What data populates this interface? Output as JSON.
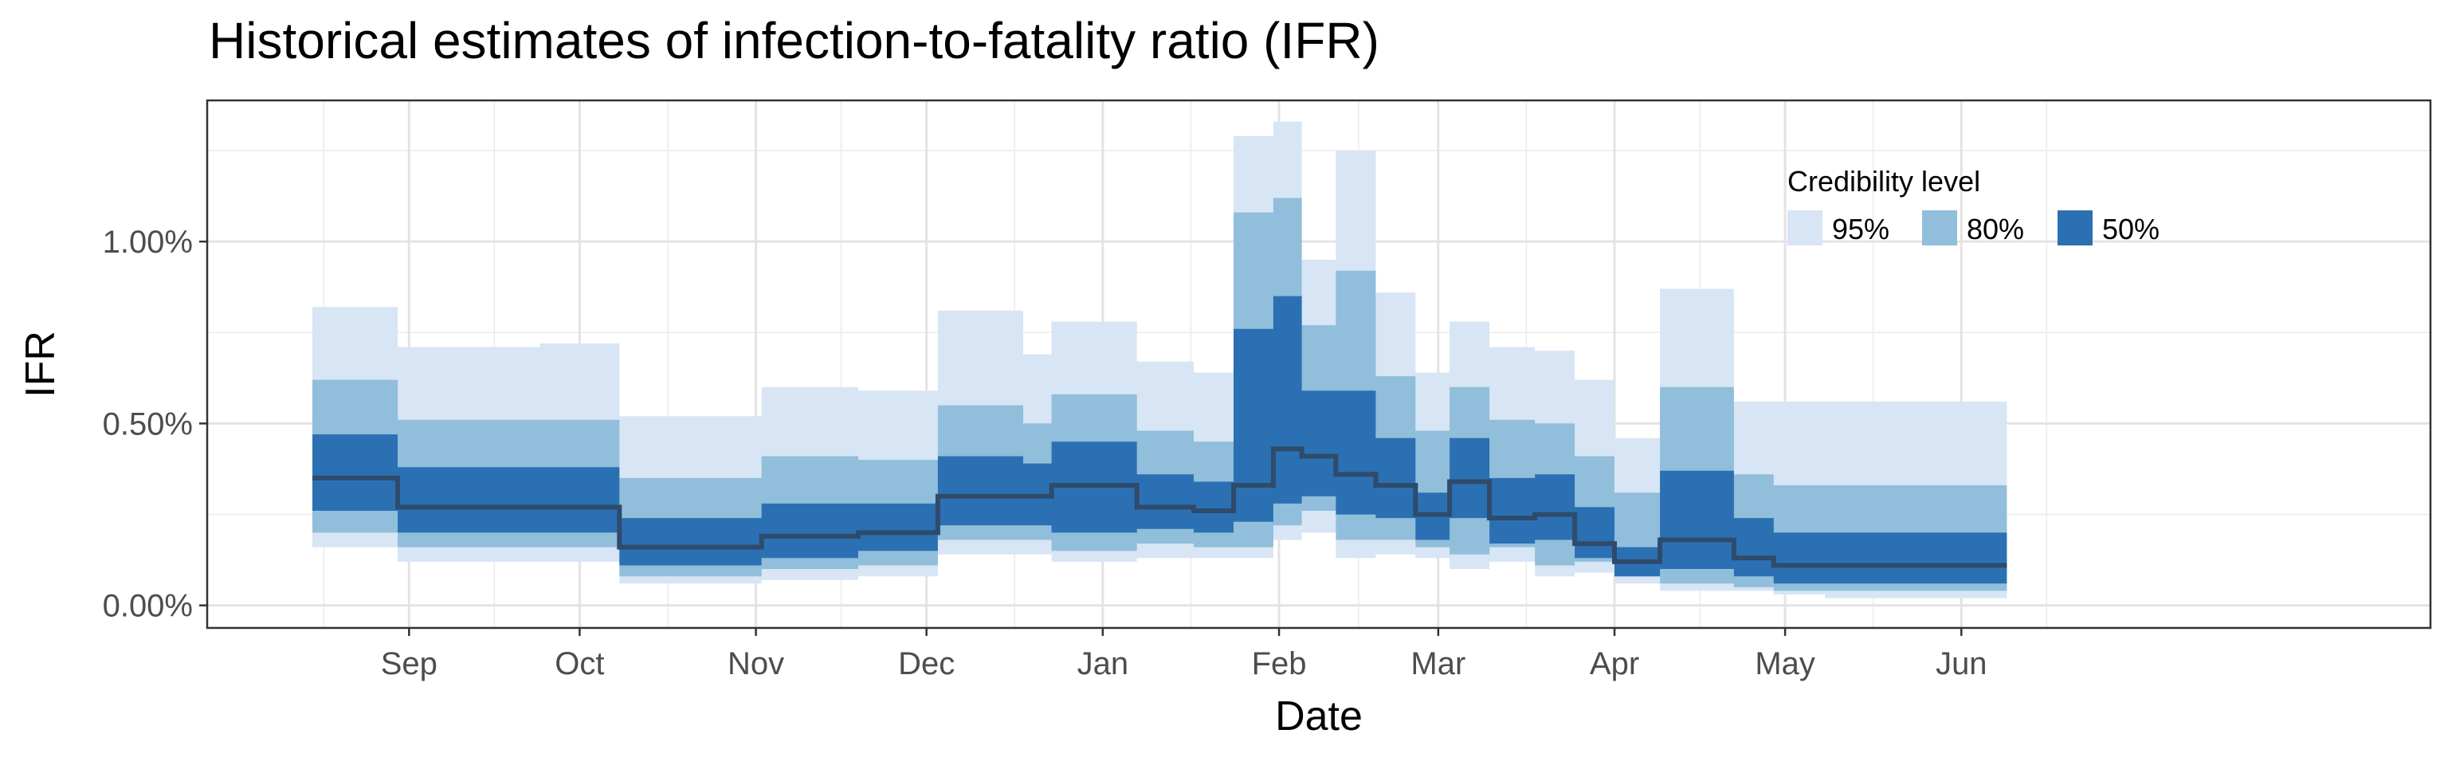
{
  "title": "Historical estimates of infection-to-fatality ratio (IFR)",
  "chart_data": {
    "type": "area",
    "title": "Historical estimates of infection-to-fatality ratio (IFR)",
    "xlabel": "Date",
    "ylabel": "IFR",
    "x_tick_labels": [
      "Sep",
      "Oct",
      "Nov",
      "Dec",
      "Jan",
      "Feb",
      "Mar",
      "Apr",
      "May",
      "Jun"
    ],
    "y_tick_labels": [
      "0.00%",
      "0.50%",
      "1.00%"
    ],
    "y_ticks": [
      0,
      0.5,
      1.0
    ],
    "xlim": [
      -35.5,
      355.5
    ],
    "ylim": [
      -0.062,
      1.388
    ],
    "grid": true,
    "legend": {
      "title": "Credibility level",
      "position": "top-right",
      "entries": [
        {
          "label": "95%",
          "color": "#d7e5f4"
        },
        {
          "label": "80%",
          "color": "#90bedb"
        },
        {
          "label": "50%",
          "color": "#2b70b3"
        }
      ]
    },
    "median_line_color": "#2f4b6b",
    "x_unit": "days after Sep 1",
    "x": [
      -17,
      -2,
      -2,
      13,
      13,
      23,
      23,
      37,
      37,
      62,
      62,
      79,
      79,
      93,
      93,
      108,
      108,
      113,
      113,
      128,
      128,
      138,
      138,
      145,
      145,
      152,
      152,
      157,
      157,
      163,
      163,
      170,
      170,
      177,
      177,
      183,
      183,
      190,
      190,
      198,
      198,
      205,
      205,
      212,
      212,
      220,
      220,
      233,
      233,
      240,
      240,
      249,
      249,
      255,
      255,
      263,
      263,
      281
    ],
    "series": [
      {
        "name": "95%",
        "color": "#d7e5f4",
        "lower": [
          0.16,
          0.16,
          0.12,
          0.12,
          0.12,
          0.12,
          0.12,
          0.12,
          0.06,
          0.06,
          0.07,
          0.07,
          0.08,
          0.08,
          0.14,
          0.14,
          0.14,
          0.14,
          0.12,
          0.12,
          0.13,
          0.13,
          0.13,
          0.13,
          0.13,
          0.13,
          0.18,
          0.18,
          0.2,
          0.2,
          0.13,
          0.13,
          0.14,
          0.14,
          0.13,
          0.13,
          0.1,
          0.1,
          0.12,
          0.12,
          0.08,
          0.08,
          0.09,
          0.09,
          0.06,
          0.06,
          0.04,
          0.04,
          0.04,
          0.04,
          0.03,
          0.03,
          0.02,
          0.02,
          0.02,
          0.02,
          0.02,
          0.02
        ],
        "upper": [
          0.82,
          0.82,
          0.71,
          0.71,
          0.71,
          0.71,
          0.72,
          0.72,
          0.52,
          0.52,
          0.6,
          0.6,
          0.59,
          0.59,
          0.81,
          0.81,
          0.69,
          0.69,
          0.78,
          0.78,
          0.67,
          0.67,
          0.64,
          0.64,
          1.29,
          1.29,
          1.33,
          1.33,
          0.95,
          0.95,
          1.25,
          1.25,
          0.86,
          0.86,
          0.64,
          0.64,
          0.78,
          0.78,
          0.71,
          0.71,
          0.7,
          0.7,
          0.62,
          0.62,
          0.46,
          0.46,
          0.87,
          0.87,
          0.56,
          0.56,
          0.56,
          0.56,
          0.56,
          0.56,
          0.56,
          0.56,
          0.56,
          0.56
        ]
      },
      {
        "name": "80%",
        "color": "#90bedb",
        "lower": [
          0.2,
          0.2,
          0.16,
          0.16,
          0.16,
          0.16,
          0.16,
          0.16,
          0.08,
          0.08,
          0.1,
          0.1,
          0.11,
          0.11,
          0.18,
          0.18,
          0.18,
          0.18,
          0.15,
          0.15,
          0.17,
          0.17,
          0.16,
          0.16,
          0.16,
          0.16,
          0.22,
          0.22,
          0.26,
          0.26,
          0.18,
          0.18,
          0.18,
          0.18,
          0.16,
          0.16,
          0.14,
          0.14,
          0.16,
          0.16,
          0.11,
          0.11,
          0.12,
          0.12,
          0.08,
          0.08,
          0.06,
          0.06,
          0.05,
          0.05,
          0.04,
          0.04,
          0.04,
          0.04,
          0.04,
          0.04,
          0.04,
          0.04
        ],
        "upper": [
          0.62,
          0.62,
          0.51,
          0.51,
          0.51,
          0.51,
          0.51,
          0.51,
          0.35,
          0.35,
          0.41,
          0.41,
          0.4,
          0.4,
          0.55,
          0.55,
          0.5,
          0.5,
          0.58,
          0.58,
          0.48,
          0.48,
          0.45,
          0.45,
          1.08,
          1.08,
          1.12,
          1.12,
          0.77,
          0.77,
          0.92,
          0.92,
          0.63,
          0.63,
          0.48,
          0.48,
          0.6,
          0.6,
          0.51,
          0.51,
          0.5,
          0.5,
          0.41,
          0.41,
          0.31,
          0.31,
          0.6,
          0.6,
          0.36,
          0.36,
          0.33,
          0.33,
          0.33,
          0.33,
          0.33,
          0.33,
          0.33,
          0.33
        ]
      },
      {
        "name": "50%",
        "color": "#2b70b3",
        "lower": [
          0.26,
          0.26,
          0.2,
          0.2,
          0.2,
          0.2,
          0.2,
          0.2,
          0.11,
          0.11,
          0.13,
          0.13,
          0.15,
          0.15,
          0.22,
          0.22,
          0.22,
          0.22,
          0.2,
          0.2,
          0.21,
          0.21,
          0.2,
          0.2,
          0.23,
          0.23,
          0.28,
          0.28,
          0.3,
          0.3,
          0.25,
          0.25,
          0.24,
          0.24,
          0.18,
          0.18,
          0.24,
          0.24,
          0.17,
          0.17,
          0.18,
          0.18,
          0.13,
          0.13,
          0.08,
          0.08,
          0.1,
          0.1,
          0.08,
          0.08,
          0.06,
          0.06,
          0.06,
          0.06,
          0.06,
          0.06,
          0.06,
          0.06
        ],
        "upper": [
          0.47,
          0.47,
          0.38,
          0.38,
          0.38,
          0.38,
          0.38,
          0.38,
          0.24,
          0.24,
          0.28,
          0.28,
          0.28,
          0.28,
          0.41,
          0.41,
          0.39,
          0.39,
          0.45,
          0.45,
          0.36,
          0.36,
          0.34,
          0.34,
          0.76,
          0.76,
          0.85,
          0.85,
          0.59,
          0.59,
          0.59,
          0.59,
          0.46,
          0.46,
          0.31,
          0.31,
          0.46,
          0.46,
          0.35,
          0.35,
          0.36,
          0.36,
          0.27,
          0.27,
          0.16,
          0.16,
          0.37,
          0.37,
          0.24,
          0.24,
          0.2,
          0.2,
          0.2,
          0.2,
          0.2,
          0.2,
          0.2,
          0.2
        ]
      }
    ],
    "median": [
      0.35,
      0.35,
      0.27,
      0.27,
      0.27,
      0.27,
      0.27,
      0.27,
      0.16,
      0.16,
      0.19,
      0.19,
      0.2,
      0.2,
      0.3,
      0.3,
      0.3,
      0.3,
      0.33,
      0.33,
      0.27,
      0.27,
      0.26,
      0.26,
      0.33,
      0.33,
      0.43,
      0.43,
      0.41,
      0.41,
      0.36,
      0.36,
      0.33,
      0.33,
      0.25,
      0.25,
      0.34,
      0.34,
      0.24,
      0.24,
      0.25,
      0.25,
      0.17,
      0.17,
      0.12,
      0.12,
      0.18,
      0.18,
      0.13,
      0.13,
      0.11,
      0.11,
      0.11,
      0.11,
      0.11,
      0.11,
      0.11,
      0.11
    ]
  }
}
